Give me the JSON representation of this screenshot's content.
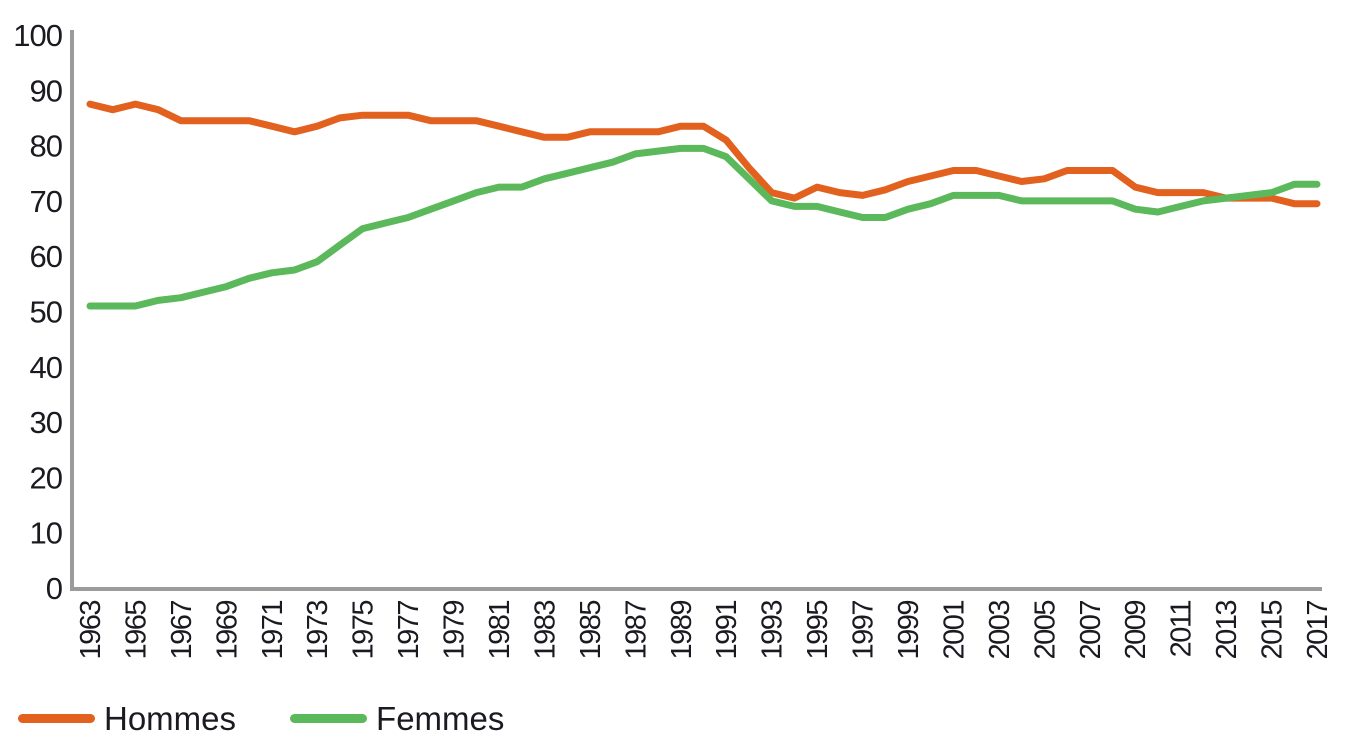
{
  "chart_data": {
    "type": "line",
    "title": "",
    "xlabel": "",
    "ylabel": "",
    "ylim": [
      0,
      100
    ],
    "grid": false,
    "legend_position": "bottom-left",
    "axis_color": "#9B9B9B",
    "tick_label_color": "#1B1A21",
    "y_ticks": [
      0,
      10,
      20,
      30,
      40,
      50,
      60,
      70,
      80,
      90,
      100
    ],
    "x": [
      1963,
      1964,
      1965,
      1966,
      1967,
      1968,
      1969,
      1970,
      1971,
      1972,
      1973,
      1974,
      1975,
      1976,
      1977,
      1978,
      1979,
      1980,
      1981,
      1982,
      1983,
      1984,
      1985,
      1986,
      1987,
      1988,
      1989,
      1990,
      1991,
      1992,
      1993,
      1994,
      1995,
      1996,
      1997,
      1998,
      1999,
      2000,
      2001,
      2002,
      2003,
      2004,
      2005,
      2006,
      2007,
      2008,
      2009,
      2010,
      2011,
      2012,
      2013,
      2014,
      2015,
      2016,
      2017
    ],
    "x_tick_labels": [
      "1963",
      "1965",
      "1967",
      "1969",
      "1971",
      "1973",
      "1975",
      "1977",
      "1979",
      "1981",
      "1983",
      "1985",
      "1987",
      "1989",
      "1991",
      "1993",
      "1995",
      "1997",
      "1999",
      "2001",
      "2003",
      "2005",
      "2007",
      "2009",
      "2011",
      "2013",
      "2015",
      "2017"
    ],
    "series": [
      {
        "name": "Hommes",
        "color": "#E2611E",
        "values": [
          87.5,
          86.5,
          87.5,
          86.5,
          84.5,
          84.5,
          84.5,
          84.5,
          83.5,
          82.5,
          83.5,
          85,
          85.5,
          85.5,
          85.5,
          84.5,
          84.5,
          84.5,
          83.5,
          82.5,
          81.5,
          81.5,
          82.5,
          82.5,
          82.5,
          82.5,
          83.5,
          83.5,
          81,
          76,
          71.5,
          70.5,
          72.5,
          71.5,
          71,
          72,
          73.5,
          74.5,
          75.5,
          75.5,
          74.5,
          73.5,
          74,
          75.5,
          75.5,
          75.5,
          72.5,
          71.5,
          71.5,
          71.5,
          70.5,
          70.5,
          70.5,
          69.5,
          69.5
        ]
      },
      {
        "name": "Femmes",
        "color": "#5BB85B",
        "values": [
          51,
          51,
          51,
          52,
          52.5,
          53.5,
          54.5,
          56,
          57,
          57.5,
          59,
          62,
          65,
          66,
          67,
          68.5,
          70,
          71.5,
          72.5,
          72.5,
          74,
          75,
          76,
          77,
          78.5,
          79,
          79.5,
          79.5,
          78,
          74,
          70,
          69,
          69,
          68,
          67,
          67,
          68.5,
          69.5,
          71,
          71,
          71,
          70,
          70,
          70,
          70,
          70,
          68.5,
          68,
          69,
          70,
          70.5,
          71,
          71.5,
          73,
          73
        ]
      }
    ]
  }
}
